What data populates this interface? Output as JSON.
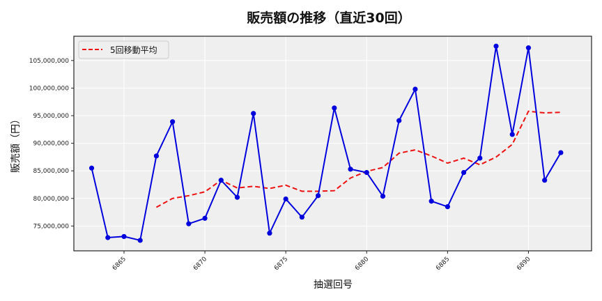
{
  "chart_data": {
    "type": "line",
    "title": "販売額の推移（直近30回）",
    "xlabel": "抽選回号",
    "ylabel": "販売額（円）",
    "x": [
      6863,
      6864,
      6865,
      6866,
      6867,
      6868,
      6869,
      6870,
      6871,
      6872,
      6873,
      6874,
      6875,
      6876,
      6877,
      6878,
      6879,
      6880,
      6881,
      6882,
      6883,
      6884,
      6885,
      6886,
      6887,
      6888,
      6889,
      6890,
      6891,
      6892
    ],
    "series": [
      {
        "name": "販売額",
        "style": "solid-with-markers",
        "color": "#0000dd",
        "values": [
          85500000,
          72900000,
          73100000,
          72400000,
          87700000,
          93900000,
          75400000,
          76400000,
          83300000,
          80200000,
          95400000,
          73700000,
          79900000,
          76600000,
          80500000,
          96400000,
          85300000,
          84700000,
          80400000,
          94100000,
          99800000,
          79500000,
          78500000,
          84700000,
          87300000,
          107600000,
          91600000,
          107300000,
          83300000,
          88300000
        ]
      },
      {
        "name": "5回移動平均",
        "style": "dashed",
        "color": "#ee1111",
        "values": [
          null,
          null,
          null,
          null,
          78400000,
          80000000,
          80500000,
          81200000,
          83300000,
          81900000,
          82200000,
          81800000,
          82400000,
          81300000,
          81300000,
          81400000,
          83700000,
          84900000,
          85600000,
          88200000,
          88800000,
          87700000,
          86400000,
          87300000,
          86100000,
          87500000,
          89800000,
          95800000,
          95500000,
          95600000
        ]
      }
    ],
    "xticks": [
      6865,
      6870,
      6875,
      6880,
      6885,
      6890
    ],
    "yticks": [
      75000000,
      80000000,
      85000000,
      90000000,
      95000000,
      100000000,
      105000000
    ],
    "ytick_labels": [
      "75,000,000",
      "80,000,000",
      "85,000,000",
      "90,000,000",
      "95,000,000",
      "100,000,000",
      "105,000,000"
    ],
    "xlim": [
      6861.9,
      6893.9
    ],
    "ylim": [
      70500000,
      109400000
    ],
    "grid": true,
    "legend_position": "upper left",
    "legend": [
      "5回移動平均"
    ]
  },
  "colors": {
    "plot_background": "#efefef",
    "grid": "#ffffff",
    "axis": "#222222",
    "line_main": "#0000dd",
    "line_ma": "#ee1111"
  }
}
